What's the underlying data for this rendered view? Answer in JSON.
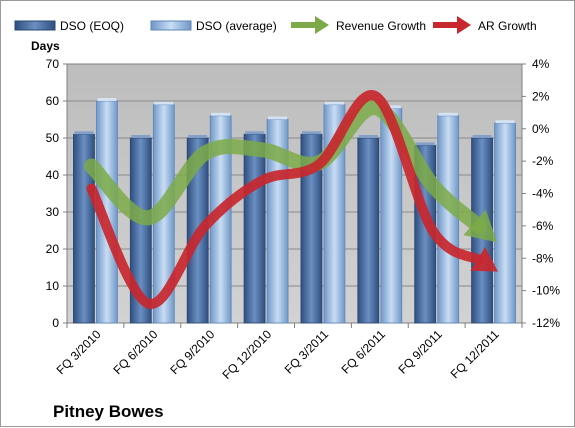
{
  "chart_data": {
    "type": "bar",
    "title": "Pitney Bowes",
    "ylabel": "Days",
    "ylim": [
      0,
      70
    ],
    "y_ticks": [
      "0",
      "10",
      "20",
      "30",
      "40",
      "50",
      "60",
      "70"
    ],
    "y2lim": [
      -12,
      4
    ],
    "y2_ticks": [
      "-12%",
      "-10%",
      "-8%",
      "-6%",
      "-4%",
      "-2%",
      "0%",
      "2%",
      "4%"
    ],
    "categories": [
      "FQ 3/2010",
      "FQ 6/2010",
      "FQ 9/2010",
      "FQ 12/2010",
      "FQ 3/2011",
      "FQ 6/2011",
      "FQ 9/2011",
      "FQ 12/2011"
    ],
    "legend_position": "top",
    "grid": true,
    "series": [
      {
        "name": "DSO (EOQ)",
        "type": "bar",
        "axis": "left",
        "color": "#4a6fa5",
        "values": [
          51,
          50,
          50,
          51,
          51,
          50,
          48,
          50
        ]
      },
      {
        "name": "DSO (average)",
        "type": "bar",
        "axis": "left",
        "color": "#8fb3dd",
        "values": [
          60,
          59,
          56,
          55,
          59,
          58,
          56,
          54
        ]
      },
      {
        "name": "Revenue Growth",
        "type": "line",
        "axis": "right",
        "color": "#7daa48",
        "values": [
          -2.3,
          -5.5,
          -1.5,
          -1.3,
          -2.1,
          1.3,
          -3.5,
          -6.6
        ]
      },
      {
        "name": "AR Growth",
        "type": "line",
        "axis": "right",
        "color": "#c8272e",
        "values": [
          -3.7,
          -10.8,
          -6.0,
          -3.2,
          -2.2,
          2.0,
          -6.3,
          -8.5
        ]
      }
    ]
  }
}
